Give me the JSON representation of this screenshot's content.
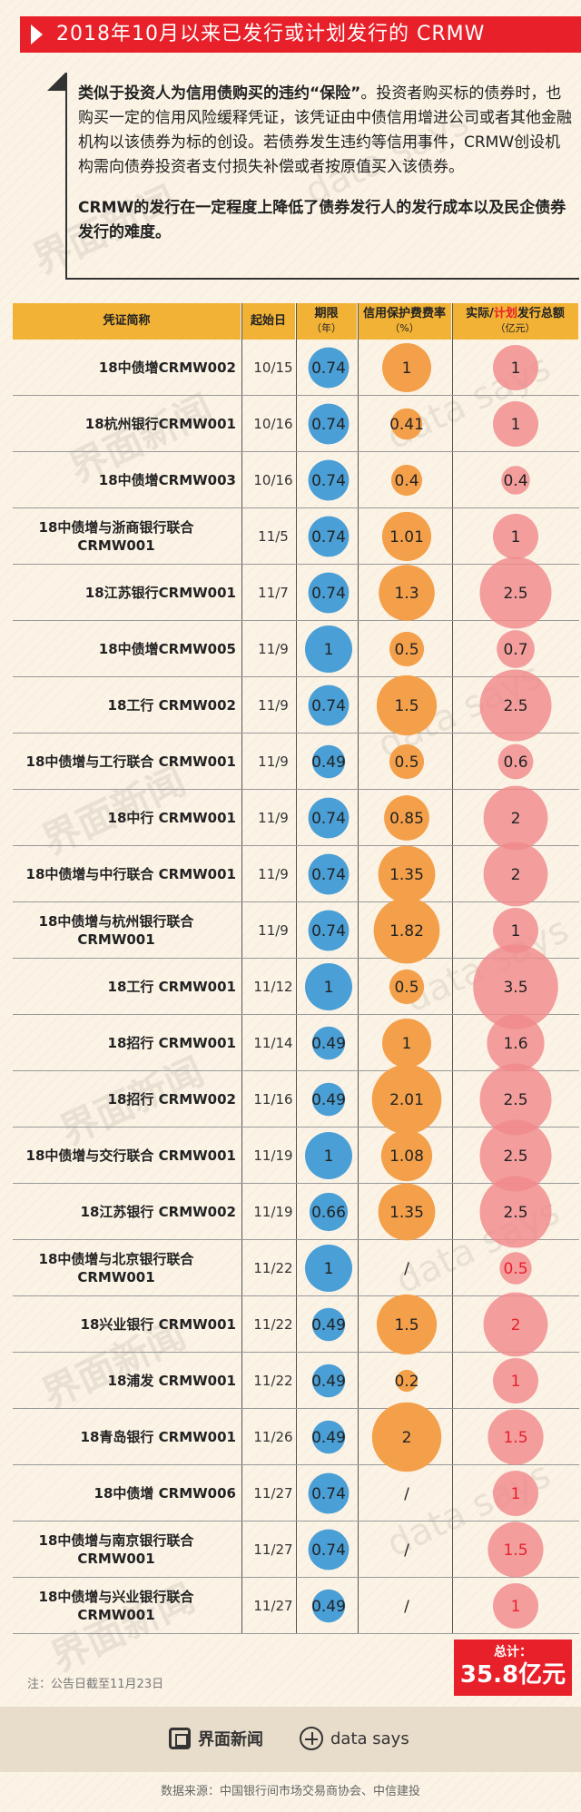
{
  "title": "2018年10月以来已发行或计划发行的 CRMW",
  "intro": {
    "p1_bold": "类似于投资人为信用债购买的违约“保险”",
    "p1_rest": "。投资者购买标的债券时，也购买一定的信用风险缓释凭证，该凭证由中债信用增进公司或者其他金融机构以该债券为标的创设。若债券发生违约等信用事件，CRMW创设机构需向债券投资者支付损失补偿或者按原值买入该债券。",
    "p2": "CRMW的发行在一定程度上降低了债券发行人的发行成本以及民企债券发行的难度。"
  },
  "headers": {
    "name": "凭证简称",
    "date": "起始日",
    "term": "期限",
    "term_unit": "（年）",
    "fee": "信用保护费费率",
    "fee_unit": "（%）",
    "amount_prefix": "实际/",
    "amount_highlight": "计划",
    "amount_suffix": "发行总额",
    "amount_unit": "（亿元）"
  },
  "watermarks": {
    "brand": "界面新闻",
    "ds": "data says"
  },
  "chart_data": {
    "type": "table",
    "columns": [
      "凭证简称",
      "起始日",
      "期限（年）",
      "信用保护费费率（%）",
      "实际/计划发行总额（亿元）"
    ],
    "rows": [
      {
        "name": "18中债增CRMW002",
        "date": "10/15",
        "term": 0.74,
        "fee": "1",
        "amount": "1",
        "planned": false
      },
      {
        "name": "18杭州银行CRMW001",
        "date": "10/16",
        "term": 0.74,
        "fee": "0.41",
        "amount": "1",
        "planned": false
      },
      {
        "name": "18中债增CRMW003",
        "date": "10/16",
        "term": 0.74,
        "fee": "0.4",
        "amount": "0.4",
        "planned": false
      },
      {
        "name": "18中债增与浙商银行联合CRMW001",
        "date": "11/5",
        "term": 0.74,
        "fee": "1.01",
        "amount": "1",
        "planned": false
      },
      {
        "name": "18江苏银行CRMW001",
        "date": "11/7",
        "term": 0.74,
        "fee": "1.3",
        "amount": "2.5",
        "planned": false
      },
      {
        "name": "18中债增CRMW005",
        "date": "11/9",
        "term": 1,
        "fee": "0.5",
        "amount": "0.7",
        "planned": false
      },
      {
        "name": "18工行 CRMW002",
        "date": "11/9",
        "term": 0.74,
        "fee": "1.5",
        "amount": "2.5",
        "planned": false
      },
      {
        "name": "18中债增与工行联合 CRMW001",
        "date": "11/9",
        "term": 0.49,
        "fee": "0.5",
        "amount": "0.6",
        "planned": false
      },
      {
        "name": "18中行 CRMW001",
        "date": "11/9",
        "term": 0.74,
        "fee": "0.85",
        "amount": "2",
        "planned": false
      },
      {
        "name": "18中债增与中行联合 CRMW001",
        "date": "11/9",
        "term": 0.74,
        "fee": "1.35",
        "amount": "2",
        "planned": false
      },
      {
        "name": "18中债增与杭州银行联合CRMW001",
        "date": "11/9",
        "term": 0.74,
        "fee": "1.82",
        "amount": "1",
        "planned": false
      },
      {
        "name": "18工行 CRMW001",
        "date": "11/12",
        "term": 1,
        "fee": "0.5",
        "amount": "3.5",
        "planned": false
      },
      {
        "name": "18招行 CRMW001",
        "date": "11/14",
        "term": 0.49,
        "fee": "1",
        "amount": "1.6",
        "planned": false
      },
      {
        "name": "18招行 CRMW002",
        "date": "11/16",
        "term": 0.49,
        "fee": "2.01",
        "amount": "2.5",
        "planned": false
      },
      {
        "name": "18中债增与交行联合 CRMW001",
        "date": "11/19",
        "term": 1,
        "fee": "1.08",
        "amount": "2.5",
        "planned": false
      },
      {
        "name": "18江苏银行 CRMW002",
        "date": "11/19",
        "term": 0.66,
        "fee": "1.35",
        "amount": "2.5",
        "planned": false
      },
      {
        "name": "18中债增与北京银行联合CRMW001",
        "date": "11/22",
        "term": 1,
        "fee": "/",
        "amount": "0.5",
        "planned": true
      },
      {
        "name": "18兴业银行 CRMW001",
        "date": "11/22",
        "term": 0.49,
        "fee": "1.5",
        "amount": "2",
        "planned": true
      },
      {
        "name": "18浦发 CRMW001",
        "date": "11/22",
        "term": 0.49,
        "fee": "0.2",
        "amount": "1",
        "planned": true
      },
      {
        "name": "18青岛银行 CRMW001",
        "date": "11/26",
        "term": 0.49,
        "fee": "2",
        "amount": "1.5",
        "planned": true
      },
      {
        "name": "18中债增 CRMW006",
        "date": "11/27",
        "term": 0.74,
        "fee": "/",
        "amount": "1",
        "planned": true
      },
      {
        "name": "18中债增与南京银行联合CRMW001",
        "date": "11/27",
        "term": 0.74,
        "fee": "/",
        "amount": "1.5",
        "planned": true
      },
      {
        "name": "18中债增与兴业银行联合CRMW001",
        "date": "11/27",
        "term": 0.49,
        "fee": "/",
        "amount": "1",
        "planned": true
      }
    ],
    "colors": {
      "term": "#4a9fd6",
      "fee": "#f4a04a",
      "amount": "#f08a8c",
      "planned_text": "#e8202a",
      "header": "#f1b236",
      "title": "#e8202a"
    }
  },
  "footnote": "注：公告日截至11月23日",
  "total": {
    "label": "总计：",
    "value": "35.8亿元"
  },
  "brands": {
    "brand1": "界面新闻",
    "brand2": "data says"
  },
  "source": "数据来源：中国银行间市场交易商协会、中信建投"
}
